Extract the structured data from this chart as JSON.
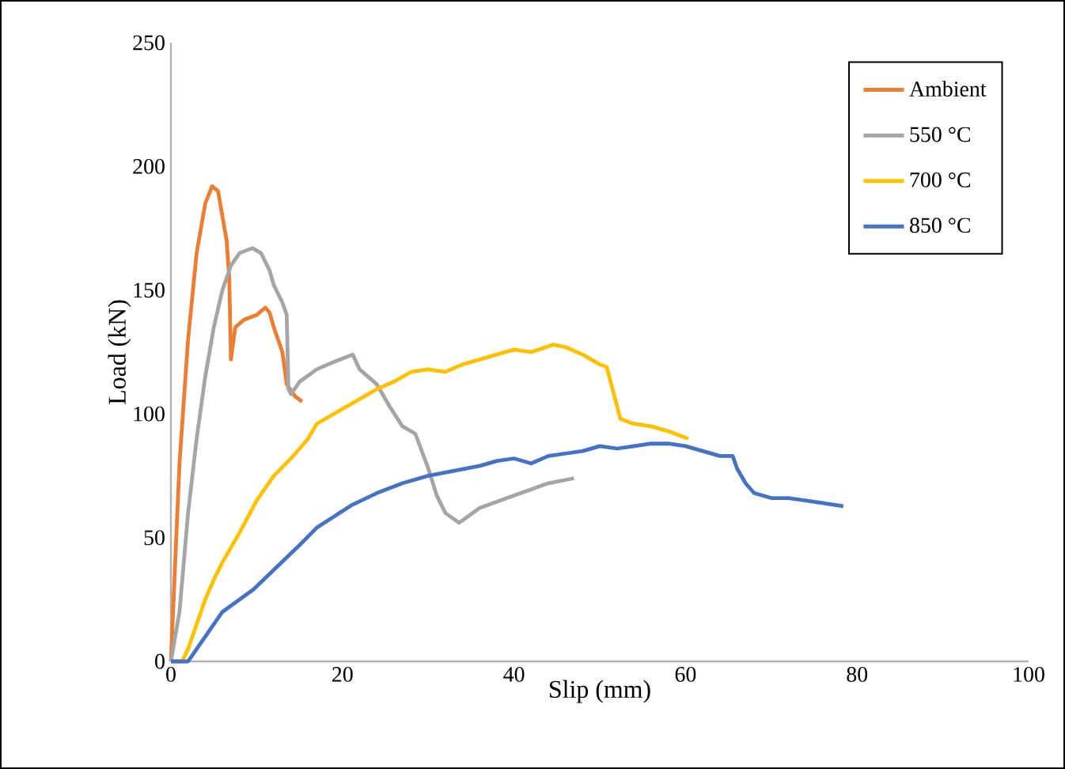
{
  "chart_data": {
    "type": "line",
    "xlabel": "Slip (mm)",
    "ylabel": "Load (kN)",
    "xlim": [
      0,
      100
    ],
    "ylim": [
      0,
      250
    ],
    "xticks": [
      0,
      20,
      40,
      60,
      80,
      100
    ],
    "yticks": [
      0,
      50,
      100,
      150,
      200,
      250
    ],
    "grid": false,
    "legend": "top right",
    "marker": "none",
    "line_style": "solid",
    "series": [
      {
        "name": "Ambient",
        "color": "#ed7d31",
        "x": [
          0,
          0.5,
          1,
          2,
          3,
          4,
          4.8,
          5.5,
          6,
          6.5,
          6.8,
          7,
          7.5,
          8.5,
          10,
          11,
          11.5,
          12,
          13,
          13.5,
          14.5,
          15.3
        ],
        "values": [
          0,
          40,
          80,
          130,
          165,
          185,
          192,
          190,
          180,
          170,
          155,
          122,
          135,
          138,
          140,
          143,
          141,
          135,
          125,
          112,
          107,
          105
        ]
      },
      {
        "name": "550 °C",
        "color": "#a5a5a5",
        "x": [
          0,
          1,
          2,
          3,
          4,
          5,
          6,
          7,
          8,
          9.5,
          10.5,
          11.5,
          12,
          13,
          13.5,
          13.7,
          14,
          15,
          17,
          19,
          21.2,
          22,
          24,
          25.5,
          27,
          28.5,
          30,
          31,
          32,
          33.6,
          36,
          40,
          44,
          47
        ],
        "values": [
          0,
          20,
          60,
          90,
          115,
          135,
          150,
          160,
          165,
          167,
          165,
          158,
          152,
          145,
          140,
          110,
          108,
          113,
          118,
          121,
          124,
          118,
          112,
          103,
          95,
          92,
          78,
          67,
          60,
          56,
          62,
          67,
          72,
          74
        ]
      },
      {
        "name": "700 °C",
        "color": "#ffc000",
        "x": [
          0,
          1.3,
          2,
          3,
          4,
          5,
          6,
          8,
          10,
          12,
          14,
          16,
          17,
          18,
          20,
          22,
          24,
          26,
          28,
          30,
          32,
          34,
          36,
          38,
          40,
          42,
          44.6,
          46,
          48,
          50,
          50.8,
          51.5,
          52.4,
          54,
          56,
          58,
          60.3
        ],
        "values": [
          0,
          0,
          5,
          15,
          25,
          33,
          40,
          52,
          65,
          75,
          82,
          90,
          96,
          98,
          102,
          106,
          110,
          113,
          117,
          118,
          117,
          120,
          122,
          124,
          126,
          125,
          128,
          127,
          124,
          120,
          119,
          110,
          98,
          96,
          95,
          93,
          90
        ]
      },
      {
        "name": "850 °C",
        "color": "#4472c4",
        "x": [
          0,
          2,
          3,
          6,
          9.6,
          12,
          15,
          17,
          21,
          24,
          27,
          30,
          33,
          36,
          38,
          40,
          42,
          44,
          46,
          48,
          50,
          52,
          54,
          56,
          58,
          60,
          62,
          64,
          65.5,
          66,
          67,
          68,
          70,
          72,
          74,
          76,
          78.4
        ],
        "values": [
          0,
          0,
          5,
          20,
          29,
          37,
          47,
          54,
          63,
          68,
          72,
          75,
          77,
          79,
          81,
          82,
          80,
          83,
          84,
          85,
          87,
          86,
          87,
          88,
          88,
          87,
          85,
          83,
          83,
          78,
          72,
          68,
          66,
          66,
          65,
          64,
          62.7
        ]
      }
    ]
  }
}
